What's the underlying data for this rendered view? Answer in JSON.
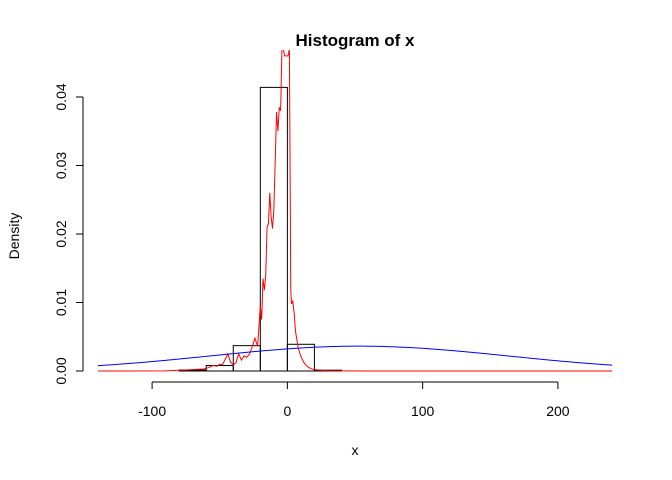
{
  "chart_data": {
    "type": "histogram",
    "title": "Histogram of x",
    "xlabel": "x",
    "ylabel": "Density",
    "xlim": [
      -140,
      240
    ],
    "ylim": [
      0,
      0.0435
    ],
    "x_ticks": [
      -100,
      0,
      100,
      200
    ],
    "x_tick_labels": [
      "-100",
      "0",
      "100",
      "200"
    ],
    "y_ticks": [
      0,
      0.01,
      0.02,
      0.03,
      0.04
    ],
    "y_tick_labels": [
      "0.00",
      "0.01",
      "0.02",
      "0.03",
      "0.04"
    ],
    "grid": false,
    "bins": [
      {
        "x0": -80,
        "x1": -60,
        "density": 0.00015
      },
      {
        "x0": -60,
        "x1": -40,
        "density": 0.0008
      },
      {
        "x0": -40,
        "x1": -20,
        "density": 0.0037
      },
      {
        "x0": -20,
        "x1": 0,
        "density": 0.0414
      },
      {
        "x0": 0,
        "x1": 20,
        "density": 0.0039
      },
      {
        "x0": 20,
        "x1": 40,
        "density": 0.00012
      }
    ],
    "series": [
      {
        "type": "line",
        "color": "#ff0000",
        "x": [
          -140,
          -90,
          -80,
          -75,
          -70,
          -66,
          -62,
          -58,
          -55,
          -52,
          -50,
          -48,
          -46,
          -44,
          -42,
          -40,
          -38,
          -36,
          -34,
          -32,
          -30,
          -28,
          -26,
          -24,
          -22,
          -20,
          -19,
          -18,
          -17,
          -16,
          -15,
          -14,
          -13,
          -12,
          -11,
          -10,
          -9,
          -8,
          -7,
          -6,
          -5,
          -4,
          -3,
          -2,
          0.5,
          1.5,
          2.5,
          3,
          4,
          5,
          6,
          8,
          10,
          12,
          14,
          16,
          18,
          20,
          25,
          30,
          40,
          60,
          100,
          240
        ],
        "y": [
          0,
          2e-05,
          0.0001,
          0.00015,
          0.0002,
          0.00025,
          0.0003,
          0.0005,
          0.0008,
          0.0007,
          0.001,
          0.0009,
          0.0017,
          0.0025,
          0.0013,
          0.0009,
          0.0012,
          0.0025,
          0.0016,
          0.0022,
          0.002,
          0.0025,
          0.0035,
          0.0048,
          0.0036,
          0.0095,
          0.0075,
          0.0135,
          0.0118,
          0.014,
          0.021,
          0.0215,
          0.026,
          0.0225,
          0.0208,
          0.0235,
          0.0305,
          0.0378,
          0.035,
          0.0385,
          0.038,
          0.047,
          0.047,
          0.046,
          0.046,
          0.047,
          0.012,
          0.0098,
          0.0102,
          0.0085,
          0.0058,
          0.0034,
          0.0021,
          0.0013,
          0.0008,
          0.0005,
          0.0003,
          0.0002,
          0.0001,
          4e-05,
          1e-05,
          0,
          0,
          0
        ]
      },
      {
        "type": "line",
        "color": "#0000ff",
        "distribution": "normal",
        "mean": 53,
        "sd": 110
      }
    ]
  }
}
